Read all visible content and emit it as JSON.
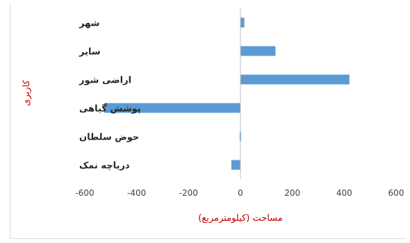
{
  "chart_data": {
    "type": "bar",
    "orientation": "horizontal",
    "categories": [
      "شهر",
      "سایر",
      "اراضی شور",
      "پوشش گیاهی",
      "حوض سلطان",
      "دریاچه نمک"
    ],
    "values": [
      15,
      135,
      420,
      -525,
      -3,
      -35
    ],
    "xlabel": "مساحت (کیلومترمربع)",
    "ylabel": "کاربری",
    "xlim": [
      -600,
      600
    ],
    "xticks": [
      "-600",
      "-400",
      "-200",
      "0",
      "200",
      "400",
      "600"
    ],
    "grid": false,
    "legend": "none",
    "bar_color": "#5b9bd5",
    "label_color": "#c00000"
  }
}
